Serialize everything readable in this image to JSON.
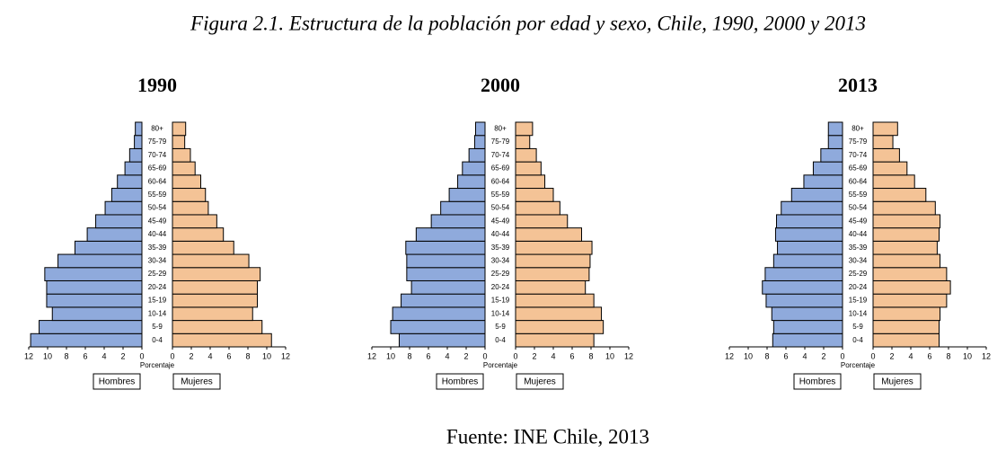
{
  "title": "Figura 2.1. Estructura de la población por edad y sexo, Chile, 1990, 2000 y 2013",
  "source": "Fuente: INE Chile, 2013",
  "chart_data": [
    {
      "type": "pyramid",
      "title": "1990",
      "categories": [
        "0-4",
        "5-9",
        "10-14",
        "15-19",
        "20-24",
        "25-29",
        "30-34",
        "35-39",
        "40-44",
        "45-49",
        "50-54",
        "55-59",
        "60-64",
        "65-69",
        "70-74",
        "75-79",
        "80+"
      ],
      "series": [
        {
          "name": "Hombres",
          "color": "#8faadc",
          "values": [
            11.8,
            10.9,
            9.5,
            10.1,
            10.1,
            10.3,
            8.9,
            7.1,
            5.8,
            4.9,
            3.9,
            3.2,
            2.6,
            1.8,
            1.3,
            0.8,
            0.7
          ]
        },
        {
          "name": "Mujeres",
          "color": "#f4c396",
          "values": [
            10.5,
            9.5,
            8.5,
            9.0,
            9.0,
            9.3,
            8.1,
            6.5,
            5.4,
            4.7,
            3.8,
            3.5,
            3.0,
            2.4,
            1.9,
            1.3,
            1.4
          ]
        }
      ],
      "xlim": [
        0,
        12
      ],
      "xticks": [
        0,
        2,
        4,
        6,
        8,
        10,
        12
      ],
      "xlabel": "Porcentaje"
    },
    {
      "type": "pyramid",
      "title": "2000",
      "categories": [
        "0-4",
        "5-9",
        "10-14",
        "15-19",
        "20-24",
        "25-29",
        "30-34",
        "35-39",
        "40-44",
        "45-49",
        "50-54",
        "55-59",
        "60-64",
        "65-69",
        "70-74",
        "75-79",
        "80+"
      ],
      "series": [
        {
          "name": "Hombres",
          "color": "#8faadc",
          "values": [
            9.1,
            10.0,
            9.8,
            8.9,
            7.8,
            8.3,
            8.3,
            8.4,
            7.3,
            5.7,
            4.7,
            3.8,
            2.9,
            2.4,
            1.7,
            1.1,
            1.0
          ]
        },
        {
          "name": "Mujeres",
          "color": "#f4c396",
          "values": [
            8.3,
            9.3,
            9.1,
            8.3,
            7.4,
            7.8,
            7.9,
            8.1,
            7.0,
            5.5,
            4.7,
            4.0,
            3.1,
            2.7,
            2.2,
            1.5,
            1.8
          ]
        }
      ],
      "xlim": [
        0,
        12
      ],
      "xticks": [
        0,
        2,
        4,
        6,
        8,
        10,
        12
      ],
      "xlabel": "Porcentaje"
    },
    {
      "type": "pyramid",
      "title": "2013",
      "categories": [
        "0-4",
        "5-9",
        "10-14",
        "15-19",
        "20-24",
        "25-29",
        "30-34",
        "35-39",
        "40-44",
        "45-49",
        "50-54",
        "55-59",
        "60-64",
        "65-69",
        "70-74",
        "75-79",
        "80+"
      ],
      "series": [
        {
          "name": "Hombres",
          "color": "#8faadc",
          "values": [
            7.4,
            7.3,
            7.5,
            8.1,
            8.5,
            8.2,
            7.3,
            6.9,
            7.1,
            7.0,
            6.5,
            5.4,
            4.1,
            3.1,
            2.3,
            1.5,
            1.5
          ]
        },
        {
          "name": "Mujeres",
          "color": "#f4c396",
          "values": [
            7.0,
            7.0,
            7.1,
            7.8,
            8.2,
            7.8,
            7.1,
            6.8,
            7.0,
            7.1,
            6.6,
            5.6,
            4.4,
            3.6,
            2.8,
            2.1,
            2.6
          ]
        }
      ],
      "xlim": [
        0,
        12
      ],
      "xticks": [
        0,
        2,
        4,
        6,
        8,
        10,
        12
      ],
      "xlabel": "Porcentaje"
    }
  ]
}
